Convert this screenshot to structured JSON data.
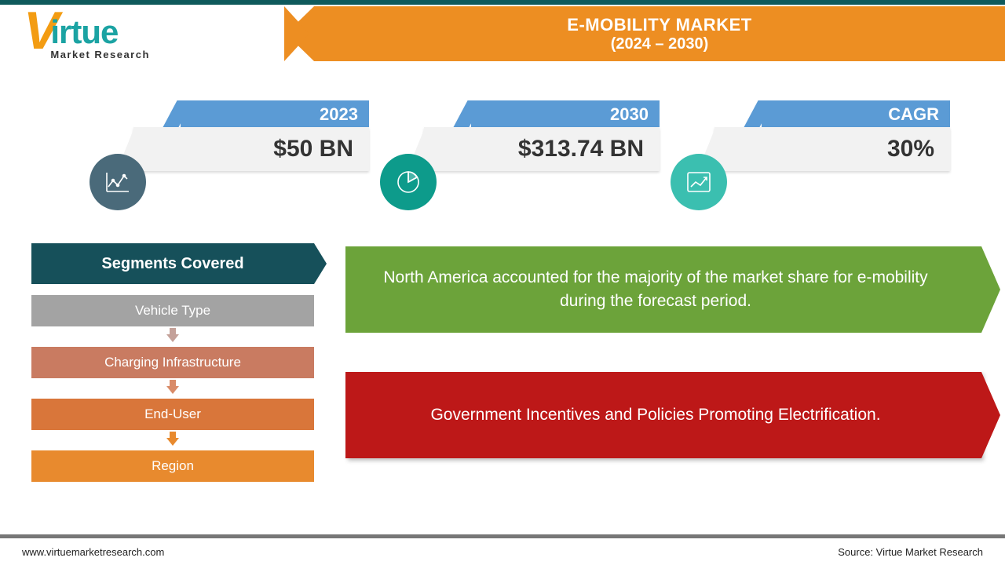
{
  "colors": {
    "teal_dark": "#0f5a5c",
    "orange": "#ed8e22",
    "blue_tab": "#5b9bd5",
    "card_bg": "#f2f2f2",
    "icon1": "#4a6a7a",
    "icon2": "#0d9b8b",
    "icon3": "#3bbfb0",
    "seg_header": "#16505a",
    "seg1": "#a3a3a3",
    "seg2": "#c97b61",
    "seg3": "#d9763a",
    "seg4": "#e88a2e",
    "green": "#6ca33a",
    "red": "#bd1818"
  },
  "logo": {
    "main": "irtue",
    "sub": "Market Research"
  },
  "title": {
    "line1": "E-MOBILITY MARKET",
    "line2": "(2024 – 2030)"
  },
  "stats": [
    {
      "label": "2023",
      "value": "$50 BN",
      "icon": "line-chart-icon"
    },
    {
      "label": "2030",
      "value": "$313.74 BN",
      "icon": "pie-chart-icon"
    },
    {
      "label": "CAGR",
      "value": "30%",
      "icon": "growth-chart-icon"
    }
  ],
  "segments": {
    "header": "Segments Covered",
    "items": [
      {
        "label": "Vehicle Type",
        "bg": "#a3a3a3",
        "arrow": "#c4a199"
      },
      {
        "label": "Charging Infrastructure",
        "bg": "#c97b61",
        "arrow": "#d98b68"
      },
      {
        "label": "End-User",
        "bg": "#d9763a",
        "arrow": "#e88a2e"
      },
      {
        "label": "Region",
        "bg": "#e88a2e",
        "arrow": null
      }
    ]
  },
  "callouts": {
    "green": "North America accounted for the majority of the market share for e-mobility during the forecast period.",
    "red": "Government Incentives and Policies Promoting Electrification."
  },
  "footer": {
    "left": "www.virtuemarketresearch.com",
    "right": "Source: Virtue Market Research"
  }
}
